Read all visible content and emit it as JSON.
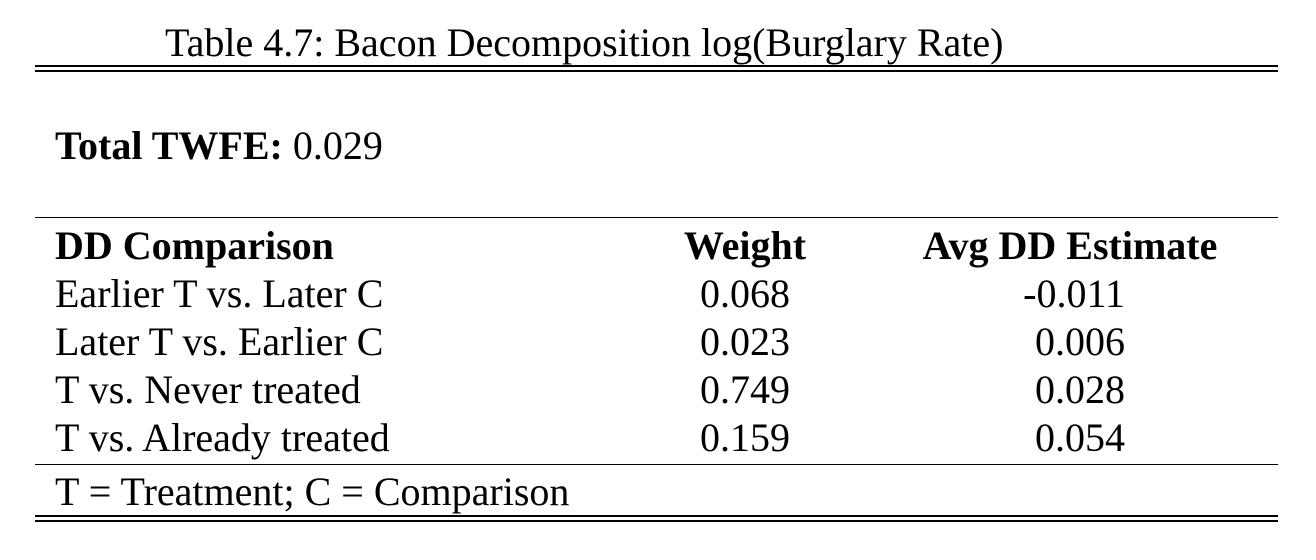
{
  "caption": "Table 4.7: Bacon Decomposition log(Burglary Rate)",
  "total": {
    "label": "Total TWFE:",
    "value": "0.029"
  },
  "table": {
    "headers": [
      "DD Comparison",
      "Weight",
      "Avg DD Estimate"
    ],
    "rows": [
      {
        "comparison": "Earlier T vs. Later C",
        "weight": "0.068",
        "estimate": "-0.011"
      },
      {
        "comparison": "Later T vs. Earlier C",
        "weight": "0.023",
        "estimate": "0.006"
      },
      {
        "comparison": "T vs. Never treated",
        "weight": "0.749",
        "estimate": "0.028"
      },
      {
        "comparison": "T vs. Already treated",
        "weight": "0.159",
        "estimate": "0.054"
      }
    ]
  },
  "note": "T = Treatment; C = Comparison"
}
